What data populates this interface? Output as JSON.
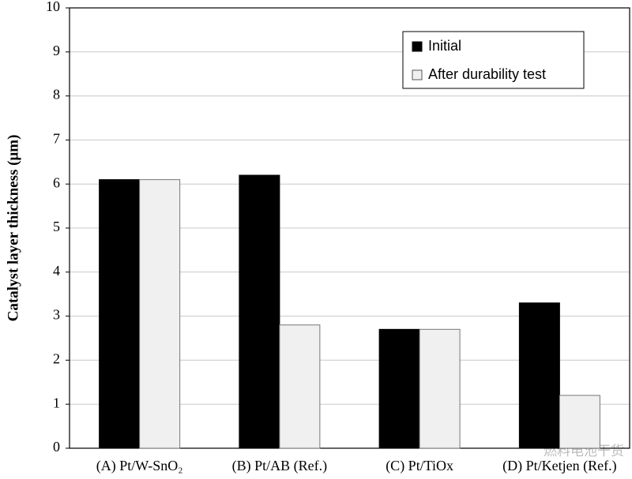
{
  "chart_data": {
    "type": "bar",
    "y_label": "Catalyst layer thickness (μm)",
    "categories": [
      "(A) Pt/W-SnO₂",
      "(B) Pt/AB (Ref.)",
      "(C) Pt/TiOx",
      "(D) Pt/Ketjen (Ref.)"
    ],
    "series": [
      {
        "name": "Initial",
        "color": "#000000",
        "values": [
          6.1,
          6.2,
          2.7,
          3.3
        ]
      },
      {
        "name": "After durability test",
        "color": "#f0f0f0",
        "values": [
          6.1,
          2.8,
          2.7,
          1.2
        ]
      }
    ],
    "ylim": [
      0,
      10
    ],
    "yticks": [
      0,
      1,
      2,
      3,
      4,
      5,
      6,
      7,
      8,
      9,
      10
    ],
    "grid": true,
    "legend": "upper right",
    "watermark": "燃料电池干货"
  }
}
